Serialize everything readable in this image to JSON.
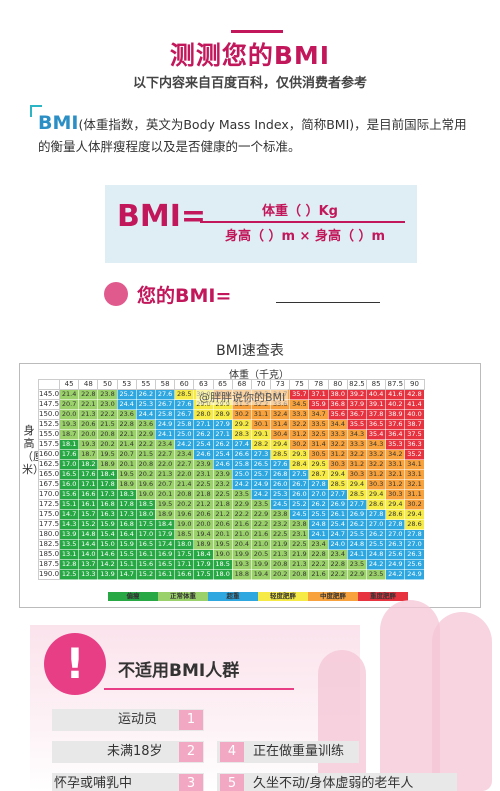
{
  "header": {
    "title": "测测您的BMI",
    "subtitle": "以下内容来自百度百科，仅供消费者参考"
  },
  "intro": {
    "bmi_word": "BMI",
    "text": "(体重指数，英文为Body Mass Index，简称BMI)，是目前国际上常用的衡量人体胖瘦程度以及是否健康的一个标准。"
  },
  "formula": {
    "lhs": "BMI=",
    "numerator": "体重（   ）Kg",
    "denominator": "身高（  ）m  ×  身高（  ）m"
  },
  "your_bmi": {
    "label": "您的BMI="
  },
  "table": {
    "title": "BMI速查表",
    "weight_header": "体重（千克）",
    "height_label": "身高（厘米）",
    "weights": [
      "45",
      "48",
      "50",
      "53",
      "55",
      "58",
      "60",
      "63",
      "65",
      "68",
      "70",
      "73",
      "75",
      "78",
      "80",
      "82.5",
      "85",
      "87.5",
      "90"
    ],
    "heights": [
      "145.0",
      "147.5",
      "150.0",
      "152.5",
      "155.0",
      "157.5",
      "160.0",
      "162.5",
      "165.0",
      "167.5",
      "170.0",
      "172.5",
      "175.0",
      "177.5",
      "180.0",
      "182.5",
      "185.0",
      "187.5",
      "190.0"
    ],
    "legend": [
      "偏瘦",
      "正常体重",
      "超重",
      "轻度肥胖",
      "中度肥胖",
      "重度肥胖"
    ],
    "legend_colors": [
      "#28a745",
      "#9bd16a",
      "#2ea7e0",
      "#f6ea46",
      "#f7a23c",
      "#e6333f"
    ]
  },
  "watermark": "@胖胖说你的BMI",
  "not_applicable": {
    "title": "不适用BMI人群",
    "items": [
      {
        "label": "运动员",
        "num": "1"
      },
      {
        "label": "未满18岁",
        "num": "2"
      },
      {
        "label": "正在做重量训练",
        "num": "4"
      },
      {
        "label": "怀孕或哺乳中",
        "num": "3"
      },
      {
        "label": "久坐不动/身体虚弱的老年人",
        "num": "5"
      }
    ]
  }
}
